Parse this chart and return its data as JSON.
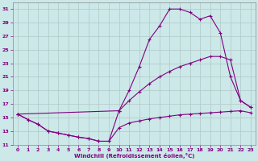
{
  "xlabel": "Windchill (Refroidissement éolien,°C)",
  "bg_color": "#cce8e8",
  "line_color": "#800080",
  "grid_color": "#b0c8c8",
  "xlim": [
    -0.5,
    23.5
  ],
  "ylim": [
    11,
    32
  ],
  "yticks": [
    11,
    13,
    15,
    17,
    19,
    21,
    23,
    25,
    27,
    29,
    31
  ],
  "xticks": [
    0,
    1,
    2,
    3,
    4,
    5,
    6,
    7,
    8,
    9,
    10,
    11,
    12,
    13,
    14,
    15,
    16,
    17,
    18,
    19,
    20,
    21,
    22,
    23
  ],
  "curve1_x": [
    0,
    1,
    2,
    3,
    4,
    5,
    6,
    7,
    8,
    9,
    10,
    11,
    12,
    13,
    14,
    15,
    16,
    17,
    18,
    19,
    20,
    21,
    22,
    23
  ],
  "curve1_y": [
    15.5,
    14.7,
    14.0,
    13.0,
    12.7,
    12.4,
    12.1,
    11.9,
    11.5,
    11.5,
    13.5,
    14.2,
    14.5,
    14.8,
    15.0,
    15.2,
    15.4,
    15.5,
    15.6,
    15.7,
    15.8,
    15.9,
    16.0,
    15.7
  ],
  "curve2_x": [
    0,
    1,
    2,
    3,
    4,
    5,
    6,
    7,
    8,
    9,
    10,
    11,
    12,
    13,
    14,
    15,
    16,
    17,
    18,
    19,
    20,
    21,
    22,
    23
  ],
  "curve2_y": [
    15.5,
    14.7,
    14.0,
    13.0,
    12.7,
    12.4,
    12.1,
    11.9,
    11.5,
    11.5,
    16.0,
    17.5,
    18.8,
    20.0,
    21.0,
    21.8,
    22.5,
    23.0,
    23.5,
    24.0,
    24.0,
    23.5,
    17.5,
    16.5
  ],
  "curve3_x": [
    0,
    10,
    11,
    12,
    13,
    14,
    15,
    16,
    17,
    18,
    19,
    20,
    21,
    22,
    23
  ],
  "curve3_y": [
    15.5,
    16.0,
    19.0,
    22.5,
    26.5,
    28.5,
    31.0,
    31.0,
    30.5,
    29.5,
    30.0,
    27.5,
    21.0,
    17.5,
    16.5
  ]
}
